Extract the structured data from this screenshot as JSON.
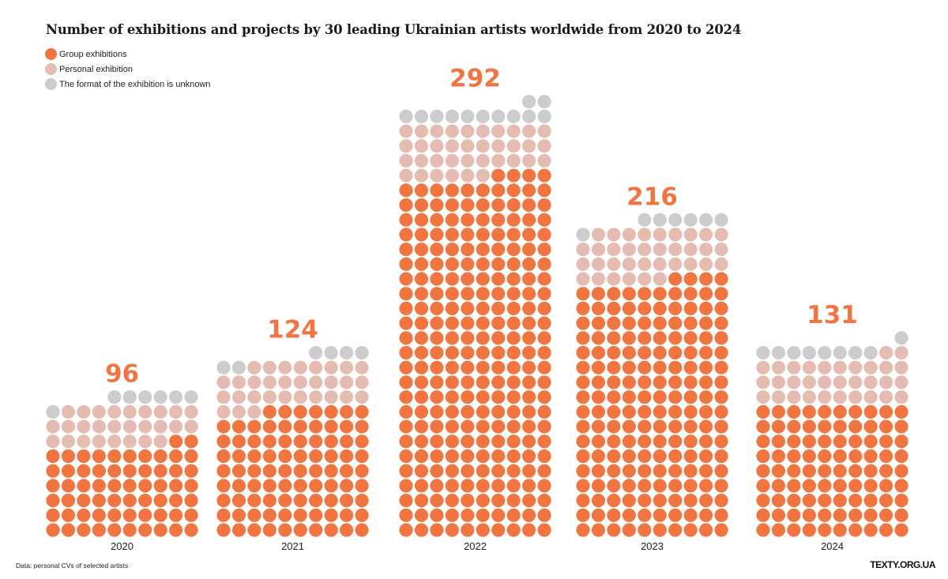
{
  "chart_data": {
    "type": "unit-dot",
    "title": "Number of exhibitions and projects by 30 leading Ukrainian artists worldwide from 2020 to 2024",
    "dots_per_row": 10,
    "categories": [
      "2020",
      "2021",
      "2022",
      "2023",
      "2024"
    ],
    "totals": [
      96,
      124,
      292,
      216,
      131
    ],
    "series": [
      {
        "name": "Group exhibitions",
        "color": "#f07540",
        "values": [
          62,
          87,
          244,
          174,
          90
        ]
      },
      {
        "name": "Personal exhibition",
        "color": "#e5bcb1",
        "values": [
          27,
          31,
          36,
          35,
          32
        ]
      },
      {
        "name": "The format of the exhibition is unknown",
        "color": "#cccccc",
        "values": [
          7,
          6,
          12,
          7,
          9
        ]
      }
    ],
    "legend_position": "top-left",
    "label_color": "#f07540"
  },
  "footer": {
    "source": "Data: personal CVs of selected artists",
    "brand": "TEXTY.ORG.UA"
  }
}
